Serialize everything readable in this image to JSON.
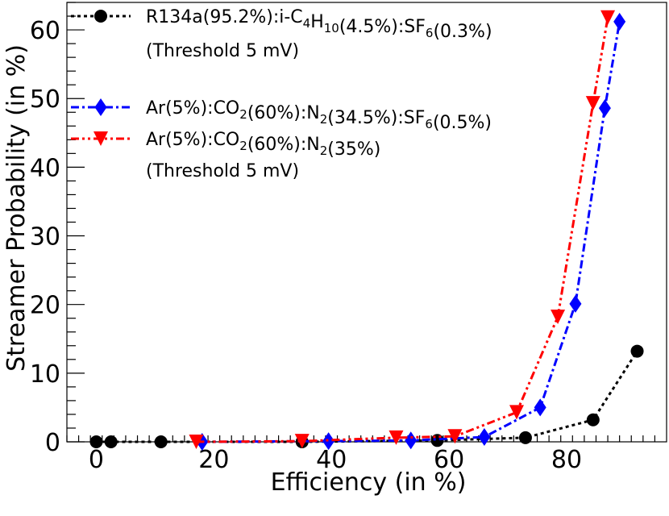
{
  "chart_data": {
    "type": "line",
    "title": "",
    "xlabel": "Efficiency (in %)",
    "ylabel": "Streamer Probability (in %)",
    "xlim": [
      -5,
      97
    ],
    "ylim": [
      0,
      64
    ],
    "xticks": [
      0,
      20,
      40,
      60,
      80
    ],
    "yticks": [
      0,
      10,
      20,
      30,
      40,
      50,
      60
    ],
    "xtick_labels": [
      "0",
      "20",
      "40",
      "60",
      "80"
    ],
    "ytick_labels": [
      "0",
      "10",
      "20",
      "30",
      "40",
      "50",
      "60"
    ],
    "grid": false,
    "legend_position": "top-left",
    "series": [
      {
        "name": "R134a(95.2%):i-C4H10(4.5%):SF6(0.3%)",
        "color": "#000000",
        "marker": "circle",
        "dash": "dotted",
        "x": [
          0,
          2.5,
          11,
          35,
          58,
          73,
          84.5,
          92
        ],
        "y": [
          0,
          0,
          0,
          0,
          0.2,
          0.6,
          3.2,
          13.2
        ]
      },
      {
        "name": "Ar(5%):CO2(60%):N2(34.5%):SF6(0.5%)",
        "color": "#0000ff",
        "marker": "diamond",
        "dash": "dash-dot",
        "x": [
          18,
          39.5,
          53.5,
          66,
          75.5,
          81.5,
          86.5,
          89
        ],
        "y": [
          0,
          0.1,
          0.2,
          0.7,
          5.0,
          20.1,
          48.6,
          61.2
        ]
      },
      {
        "name": "Ar(5%):CO2(60%):N2(35%)",
        "color": "#ff0000",
        "marker": "triangle-down",
        "dash": "dash-dot-dot",
        "x": [
          17,
          35,
          51,
          61,
          71.5,
          78.5,
          84.5,
          87
        ],
        "y": [
          0,
          0.1,
          0.6,
          0.8,
          4.3,
          18.2,
          49.3,
          61.8
        ]
      }
    ],
    "legend": {
      "entries": [
        {
          "series_index": 0,
          "segments": [
            {
              "text": "R134a(95.2%):i-C"
            },
            {
              "text": "4",
              "sub": true
            },
            {
              "text": "H"
            },
            {
              "text": "10",
              "sub": true
            },
            {
              "text": "(4.5%):SF"
            },
            {
              "text": "6",
              "sub": true
            },
            {
              "text": "(0.3%)"
            }
          ]
        },
        {
          "note": "(Threshold 5 mV)"
        },
        {
          "series_index": 1,
          "segments": [
            {
              "text": "Ar(5%):CO"
            },
            {
              "text": "2",
              "sub": true
            },
            {
              "text": "(60%):N"
            },
            {
              "text": "2",
              "sub": true
            },
            {
              "text": "(34.5%):SF"
            },
            {
              "text": "6",
              "sub": true
            },
            {
              "text": "(0.5%)"
            }
          ]
        },
        {
          "series_index": 2,
          "segments": [
            {
              "text": "Ar(5%):CO"
            },
            {
              "text": "2",
              "sub": true
            },
            {
              "text": "(60%):N"
            },
            {
              "text": "2",
              "sub": true
            },
            {
              "text": "(35%)"
            }
          ]
        },
        {
          "note": "(Threshold 5 mV)"
        }
      ]
    }
  }
}
